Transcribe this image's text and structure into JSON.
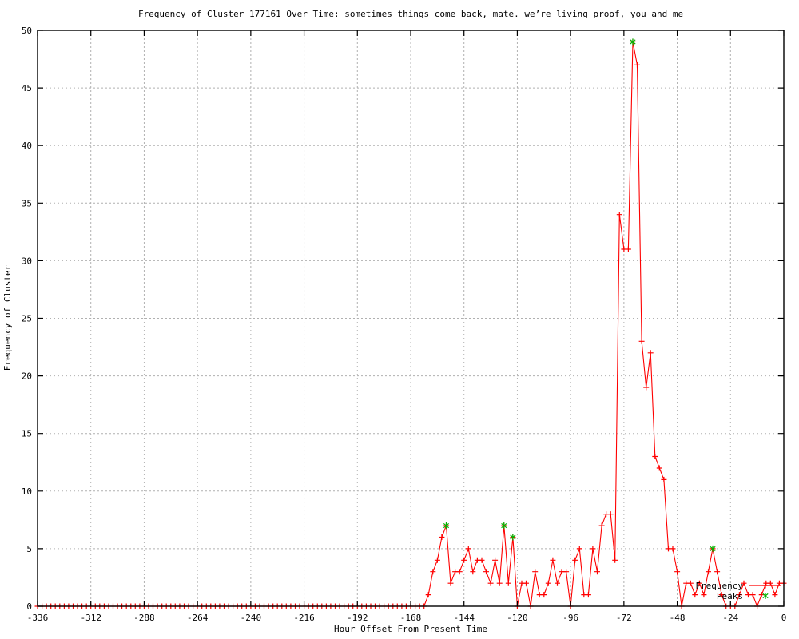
{
  "chart_data": {
    "type": "line",
    "title": "Frequency of Cluster 177161 Over Time: sometimes things come back, mate. we’re living proof, you and me",
    "xlabel": "Hour Offset From Present Time",
    "ylabel": "Frequency of Cluster",
    "xlim": [
      -336,
      0
    ],
    "ylim": [
      0,
      50
    ],
    "x_tick_step": 24,
    "y_tick_step": 5,
    "x_tick_labels": [
      "-336",
      "-312",
      "-288",
      "-264",
      "-240",
      "-216",
      "-192",
      "-168",
      "-144",
      "-120",
      "-96",
      "-72",
      "-48",
      "-24",
      "0"
    ],
    "y_tick_labels": [
      "0",
      "5",
      "10",
      "15",
      "20",
      "25",
      "30",
      "35",
      "40",
      "45",
      "50"
    ],
    "grid": true,
    "legend_position": "bottom-right-inside",
    "colors": {
      "frequency_line": "#ff0000",
      "peaks_marker": "#00b400",
      "grid": "#b0b0b0",
      "border": "#000000"
    },
    "series": [
      {
        "name": "Frequency",
        "style": "linespoints",
        "marker": "plus",
        "color": "#ff0000",
        "x_start": -336,
        "x_step": 2,
        "values": [
          0,
          0,
          0,
          0,
          0,
          0,
          0,
          0,
          0,
          0,
          0,
          0,
          0,
          0,
          0,
          0,
          0,
          0,
          0,
          0,
          0,
          0,
          0,
          0,
          0,
          0,
          0,
          0,
          0,
          0,
          0,
          0,
          0,
          0,
          0,
          0,
          0,
          0,
          0,
          0,
          0,
          0,
          0,
          0,
          0,
          0,
          0,
          0,
          0,
          0,
          0,
          0,
          0,
          0,
          0,
          0,
          0,
          0,
          0,
          0,
          0,
          0,
          0,
          0,
          0,
          0,
          0,
          0,
          0,
          0,
          0,
          0,
          0,
          0,
          0,
          0,
          0,
          0,
          0,
          0,
          0,
          0,
          0,
          0,
          0,
          0,
          0,
          0,
          1,
          3,
          4,
          6,
          7,
          2,
          3,
          3,
          4,
          5,
          3,
          4,
          4,
          3,
          2,
          4,
          2,
          7,
          2,
          6,
          0,
          2,
          2,
          0,
          3,
          1,
          1,
          2,
          4,
          2,
          3,
          3,
          0,
          4,
          5,
          1,
          1,
          5,
          3,
          7,
          8,
          8,
          4,
          34,
          31,
          31,
          49,
          47,
          23,
          19,
          22,
          13,
          12,
          11,
          5,
          5,
          3,
          0,
          2,
          2,
          1,
          2,
          1,
          3,
          5,
          3,
          1,
          0,
          0,
          0,
          1,
          2,
          1,
          1,
          0,
          1,
          2,
          2,
          1,
          2,
          2
        ]
      },
      {
        "name": "Peaks",
        "style": "points",
        "marker": "asterisk",
        "color": "#00b400",
        "points": [
          [
            -152,
            7
          ],
          [
            -126,
            7
          ],
          [
            -122,
            6
          ],
          [
            -68,
            49
          ],
          [
            -32,
            5
          ]
        ]
      }
    ]
  }
}
